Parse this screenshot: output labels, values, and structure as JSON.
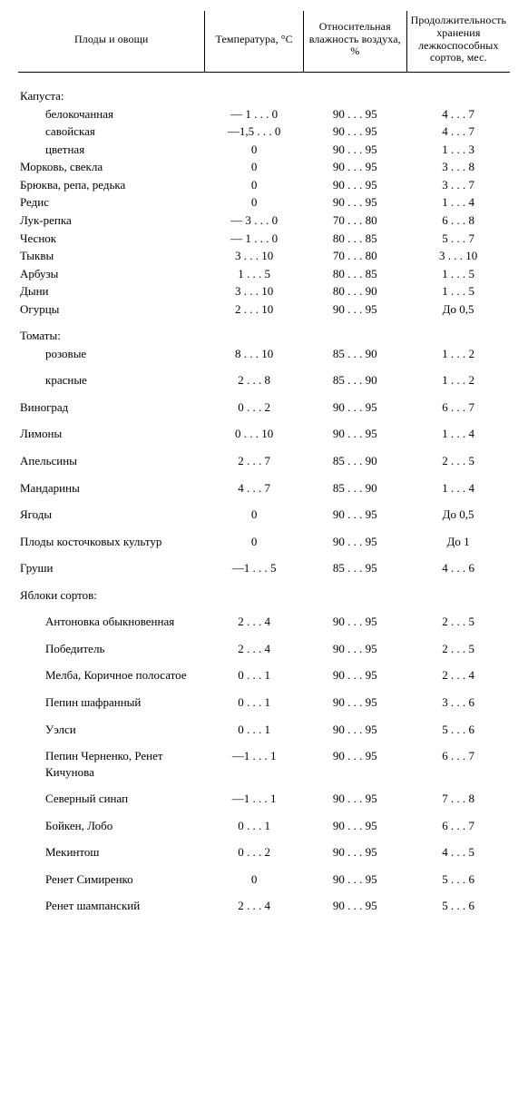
{
  "columns": {
    "c1": "Плоды и овощи",
    "c2": "Температура, °C",
    "c3": "Относительная влажность воздуха, %",
    "c4": "Продолжительность хранения лежкоспособных сортов, мес."
  },
  "groups": [
    {
      "header": "Капуста:",
      "rows": [
        {
          "name": "белокочанная",
          "indent": true,
          "t": "— 1 . . . 0",
          "h": "90 . . . 95",
          "d": "4 . . . 7"
        },
        {
          "name": "савойская",
          "indent": true,
          "t": "—1,5 . . . 0",
          "h": "90 . . . 95",
          "d": "4 . . . 7"
        },
        {
          "name": "цветная",
          "indent": true,
          "t": "0",
          "h": "90 . . . 95",
          "d": "1 . . . 3"
        }
      ],
      "tight": true
    },
    {
      "rows": [
        {
          "name": "Морковь, свекла",
          "t": "0",
          "h": "90 . . . 95",
          "d": "3 . . . 8"
        },
        {
          "name": "Брюква, репа, редька",
          "t": "0",
          "h": "90 . . . 95",
          "d": "3 . . . 7"
        },
        {
          "name": "Редис",
          "t": "0",
          "h": "90 . . . 95",
          "d": "1 . . . 4"
        },
        {
          "name": "Лук-репка",
          "t": "— 3 . . . 0",
          "h": "70 . . . 80",
          "d": "6 . . . 8"
        },
        {
          "name": "Чеснок",
          "t": "— 1 . . . 0",
          "h": "80 . . . 85",
          "d": "5 . . . 7"
        },
        {
          "name": "Тыквы",
          "t": "3 . . . 10",
          "h": "70 . . . 80",
          "d": "3 . . . 10"
        },
        {
          "name": "Арбузы",
          "t": "1 . . . 5",
          "h": "80 . . . 85",
          "d": "1 . . . 5"
        },
        {
          "name": "Дыни",
          "t": "3 . . . 10",
          "h": "80 . . . 90",
          "d": "1 . . . 5"
        },
        {
          "name": "Огурцы",
          "t": "2 . . . 10",
          "h": "90 . . . 95",
          "d": "До 0,5"
        }
      ],
      "tight": true
    },
    {
      "header": "Томаты:",
      "rows": [
        {
          "name": "розовые",
          "indent": true,
          "t": "8 . . . 10",
          "h": "85 . . . 90",
          "d": "1 . . . 2"
        },
        {
          "name": "красные",
          "indent": true,
          "t": "2 . . . 8",
          "h": "85 . . . 90",
          "d": "1 . . . 2",
          "gapBefore": true
        }
      ]
    },
    {
      "rows": [
        {
          "name": "Виноград",
          "t": "0 . . . 2",
          "h": "90 . . . 95",
          "d": "6 . . . 7",
          "gapBefore": true
        },
        {
          "name": "Лимоны",
          "t": "0 . . . 10",
          "h": "90 . . . 95",
          "d": "1 . . . 4",
          "gapBefore": true
        },
        {
          "name": "Апельсины",
          "t": "2 . . . 7",
          "h": "85 . . . 90",
          "d": "2 . . . 5",
          "gapBefore": true
        },
        {
          "name": "Мандарины",
          "t": "4 . . . 7",
          "h": "85 . . . 90",
          "d": "1 . . . 4",
          "gapBefore": true
        },
        {
          "name": "Ягоды",
          "t": "0",
          "h": "90 . . . 95",
          "d": "До 0,5",
          "gapBefore": true
        },
        {
          "name": "Плоды косточковых культур",
          "t": "0",
          "h": "90 . . . 95",
          "d": "До 1",
          "gapBefore": true,
          "twoLine": true
        },
        {
          "name": "Груши",
          "t": "—1 . . . 5",
          "h": "85 . . . 95",
          "d": "4 . . . 6",
          "gapBefore": true
        }
      ]
    },
    {
      "header": "Яблоки сортов:",
      "rows": [
        {
          "name": "Антоновка обыкновенная",
          "indent": true,
          "t": "2 . . . 4",
          "h": "90 . . . 95",
          "d": "2 . . . 5",
          "gapBefore": true
        },
        {
          "name": "Победитель",
          "indent": true,
          "t": "2 . . . 4",
          "h": "90 . . . 95",
          "d": "2 . . . 5",
          "gapBefore": true
        },
        {
          "name": "Мелба, Коричное полосатое",
          "indent": true,
          "t": "0 . . . 1",
          "h": "90 . . . 95",
          "d": "2 . . . 4",
          "gapBefore": true
        },
        {
          "name": "Пепин шафранный",
          "indent": true,
          "t": "0 . . . 1",
          "h": "90 . . . 95",
          "d": "3 . . . 6",
          "gapBefore": true
        },
        {
          "name": "Уэлси",
          "indent": true,
          "t": "0 . . . 1",
          "h": "90 . . . 95",
          "d": "5 . . . 6",
          "gapBefore": true
        },
        {
          "name": "Пепин Черненко, Ренет Кичунова",
          "indent": true,
          "t": "—1 . . . 1",
          "h": "90 . . . 95",
          "d": "6 . . . 7",
          "gapBefore": true
        },
        {
          "name": "Северный синап",
          "indent": true,
          "t": "—1 . . . 1",
          "h": "90 . . . 95",
          "d": "7 . . . 8",
          "gapBefore": true
        },
        {
          "name": "Бойкен, Лобо",
          "indent": true,
          "t": "0 . . . 1",
          "h": "90 . . . 95",
          "d": "6 . . . 7",
          "gapBefore": true
        },
        {
          "name": "Мекинтош",
          "indent": true,
          "t": "0 . . . 2",
          "h": "90 . . . 95",
          "d": "4 . . . 5",
          "gapBefore": true
        },
        {
          "name": "Ренет Симиренко",
          "indent": true,
          "t": "0",
          "h": "90 . . . 95",
          "d": "5 . . . 6",
          "gapBefore": true
        },
        {
          "name": "Ренет шампанский",
          "indent": true,
          "t": "2 . . . 4",
          "h": "90 . . . 95",
          "d": "5 . . . 6",
          "gapBefore": true
        }
      ]
    }
  ]
}
